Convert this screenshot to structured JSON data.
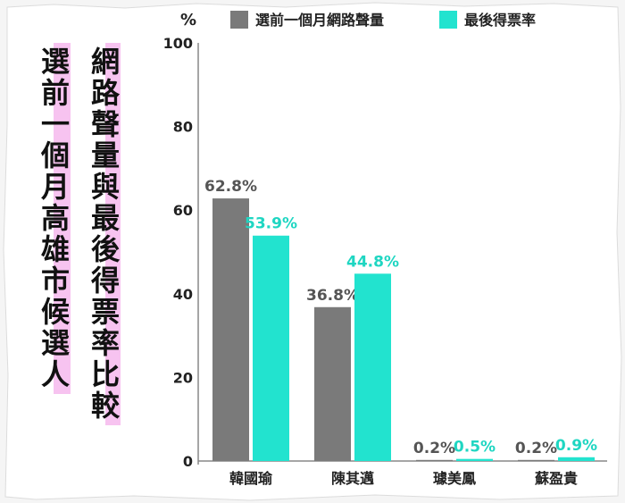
{
  "title": "網路聲量與最後得票率比較",
  "subtitle": "選前一個月高雄市候選人",
  "chart_data": {
    "type": "bar",
    "y_unit": "%",
    "ylim": [
      0,
      100
    ],
    "yticks": [
      "0",
      "20",
      "40",
      "60",
      "80",
      "100"
    ],
    "categories": [
      "韓國瑜",
      "陳其邁",
      "璩美鳳",
      "蘇盈貴"
    ],
    "series": [
      {
        "name": "選前一個月網路聲量",
        "values": [
          62.8,
          36.8,
          0.2,
          0.2
        ],
        "labels": [
          "62.8%",
          "36.8%",
          "0.2%",
          "0.2%"
        ],
        "color": "#7a7a7a"
      },
      {
        "name": "最後得票率",
        "values": [
          53.9,
          44.8,
          0.5,
          0.9
        ],
        "labels": [
          "53.9%",
          "44.8%",
          "0.5%",
          "0.9%"
        ],
        "color": "#22e3cf"
      }
    ],
    "grid": false,
    "legend_position": "top"
  }
}
